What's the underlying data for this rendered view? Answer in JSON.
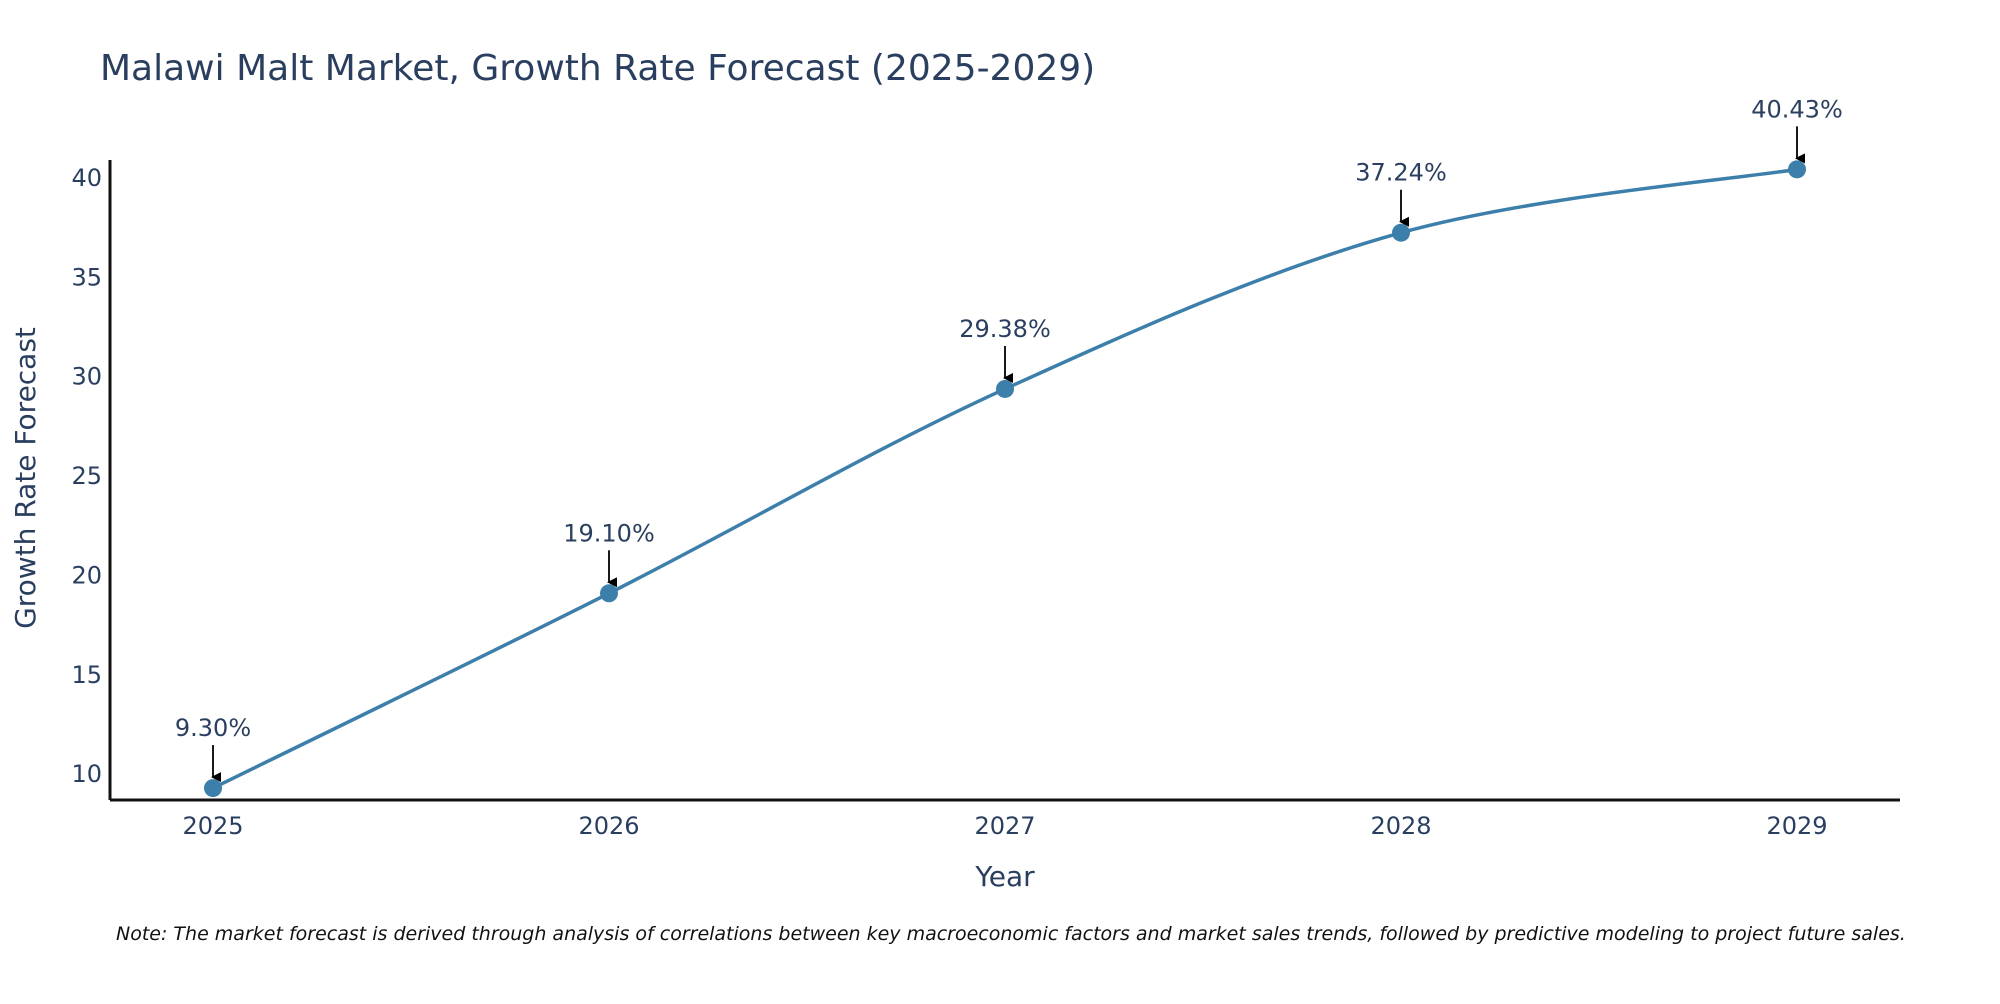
{
  "chart_data": {
    "type": "line",
    "title": "Malawi Malt Market, Growth Rate Forecast (2025-2029)",
    "xlabel": "Year",
    "ylabel": "Growth Rate Forecast",
    "categories": [
      "2025",
      "2026",
      "2027",
      "2028",
      "2029"
    ],
    "series": [
      {
        "name": "Growth Rate Forecast",
        "values": [
          9.3,
          19.1,
          29.38,
          37.24,
          40.43
        ],
        "labels": [
          "9.30%",
          "19.10%",
          "29.38%",
          "37.24%",
          "40.43%"
        ]
      }
    ],
    "yticks": [
      10,
      15,
      20,
      25,
      30,
      35,
      40
    ],
    "ylim": [
      8.7,
      40.9
    ],
    "grid": false,
    "legend": "none",
    "line_shape": "spline",
    "annotation_arrows": true,
    "note": "Note: The market forecast is derived through analysis of correlations between key macroeconomic factors and market sales trends, followed by predictive modeling to project future sales."
  },
  "colors": {
    "line": "#3d7fab",
    "marker": "#3d7fab",
    "axis": "#111111",
    "text": "#2a3f5f",
    "arrow": "#000000"
  }
}
